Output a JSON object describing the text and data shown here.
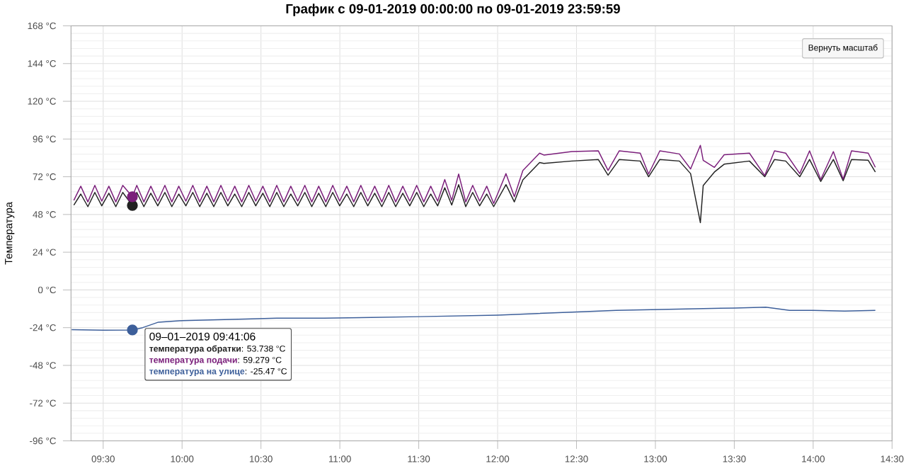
{
  "chart_data": {
    "type": "line",
    "title": "График с 09-01-2019 00:00:00 по 09-01-2019 23:59:59",
    "ylabel": "Температура",
    "xlim": [
      9.296,
      14.5
    ],
    "xticks": [
      {
        "value": 9.5,
        "label": "09:30"
      },
      {
        "value": 10,
        "label": "10:00"
      },
      {
        "value": 10.5,
        "label": "10:30"
      },
      {
        "value": 11,
        "label": "11:00"
      },
      {
        "value": 11.5,
        "label": "11:30"
      },
      {
        "value": 12,
        "label": "12:00"
      },
      {
        "value": 12.5,
        "label": "12:30"
      },
      {
        "value": 13,
        "label": "13:00"
      },
      {
        "value": 13.5,
        "label": "13:30"
      },
      {
        "value": 14,
        "label": "14:00"
      },
      {
        "value": 14.5,
        "label": "14:30"
      }
    ],
    "ylim": [
      -96,
      168
    ],
    "yticks": [
      {
        "value": -96,
        "label": "-96 °C"
      },
      {
        "value": -72,
        "label": "-72 °C"
      },
      {
        "value": -48,
        "label": "-48 °C"
      },
      {
        "value": -24,
        "label": "-24 °C"
      },
      {
        "value": 0,
        "label": "0 °C"
      },
      {
        "value": 24,
        "label": "24 °C"
      },
      {
        "value": 48,
        "label": "48 °C"
      },
      {
        "value": 72,
        "label": "72 °C"
      },
      {
        "value": 96,
        "label": "96 °C"
      },
      {
        "value": 120,
        "label": "120 °C"
      },
      {
        "value": 144,
        "label": "144 °C"
      },
      {
        "value": 168,
        "label": "168 °C"
      }
    ],
    "grid": true,
    "series": [
      {
        "name": "температура обратки",
        "color": "#222222",
        "x": [
          9.314,
          9.358,
          9.403,
          9.447,
          9.491,
          9.536,
          9.58,
          9.624,
          9.685,
          9.713,
          9.758,
          9.802,
          9.846,
          9.891,
          9.935,
          9.979,
          10.024,
          10.068,
          10.112,
          10.157,
          10.201,
          10.246,
          10.29,
          10.334,
          10.378,
          10.423,
          10.467,
          10.512,
          10.556,
          10.6,
          10.645,
          10.689,
          10.733,
          10.778,
          10.822,
          10.866,
          10.911,
          10.955,
          10.999,
          11.044,
          11.088,
          11.133,
          11.177,
          11.221,
          11.266,
          11.31,
          11.354,
          11.399,
          11.443,
          11.487,
          11.532,
          11.576,
          11.62,
          11.665,
          11.709,
          11.753,
          11.798,
          11.842,
          11.886,
          11.931,
          11.975,
          12.053,
          12.106,
          12.16,
          12.266,
          12.293,
          12.47,
          12.638,
          12.7,
          12.771,
          12.904,
          12.957,
          13.028,
          13.152,
          13.223,
          13.285,
          13.303,
          13.374,
          13.436,
          13.596,
          13.693,
          13.755,
          13.826,
          13.915,
          13.977,
          14.048,
          14.128,
          14.19,
          14.243,
          14.349,
          14.394
        ],
        "values": [
          54,
          61,
          53,
          62,
          53.5,
          61.5,
          53,
          62,
          53.738,
          62,
          53,
          61.5,
          53.5,
          62,
          53,
          61,
          53.5,
          62,
          53,
          61.5,
          53,
          62,
          53.5,
          61,
          53,
          62,
          53.5,
          61.5,
          53,
          62,
          53,
          61,
          53.5,
          62,
          53,
          61.5,
          53,
          62,
          53.5,
          61,
          53,
          62,
          53.5,
          61.5,
          53,
          62,
          53,
          61.5,
          53.5,
          62,
          53,
          61,
          53.5,
          65,
          54,
          67,
          53,
          62,
          53.5,
          61,
          53,
          67,
          56,
          70,
          81,
          80.5,
          82,
          83,
          73,
          83,
          82,
          72,
          83,
          82,
          74,
          42.8,
          66.4,
          75,
          80,
          82,
          72,
          83,
          82,
          72,
          83,
          69,
          83,
          69.5,
          83,
          82.5,
          75
        ]
      },
      {
        "name": "температура подачи",
        "color": "#7b1f7b",
        "x": [
          9.314,
          9.358,
          9.403,
          9.447,
          9.491,
          9.536,
          9.58,
          9.624,
          9.685,
          9.713,
          9.758,
          9.802,
          9.846,
          9.891,
          9.935,
          9.979,
          10.024,
          10.068,
          10.112,
          10.157,
          10.201,
          10.246,
          10.29,
          10.334,
          10.378,
          10.423,
          10.467,
          10.512,
          10.556,
          10.6,
          10.645,
          10.689,
          10.733,
          10.778,
          10.822,
          10.866,
          10.911,
          10.955,
          10.999,
          11.044,
          11.088,
          11.133,
          11.177,
          11.221,
          11.266,
          11.31,
          11.354,
          11.399,
          11.443,
          11.487,
          11.532,
          11.576,
          11.62,
          11.665,
          11.709,
          11.753,
          11.798,
          11.842,
          11.886,
          11.931,
          11.975,
          12.053,
          12.106,
          12.16,
          12.266,
          12.293,
          12.47,
          12.638,
          12.7,
          12.771,
          12.904,
          12.957,
          13.028,
          13.152,
          13.223,
          13.285,
          13.303,
          13.374,
          13.436,
          13.596,
          13.693,
          13.755,
          13.826,
          13.915,
          13.977,
          14.048,
          14.128,
          14.19,
          14.243,
          14.349,
          14.394
        ],
        "values": [
          57,
          66,
          56,
          66.5,
          56.5,
          66,
          56,
          66.5,
          59.279,
          66.5,
          56,
          66,
          56.5,
          66.5,
          56,
          66,
          56.5,
          66.5,
          56,
          66,
          56,
          66.5,
          56.5,
          66,
          56,
          66.5,
          56.5,
          66,
          56,
          66.5,
          56,
          66,
          56.5,
          66.5,
          56,
          66,
          56,
          66.5,
          56.5,
          66,
          56,
          66.5,
          56.5,
          66,
          56,
          66.5,
          56,
          66,
          56.5,
          66.5,
          56,
          66,
          56.5,
          70.2,
          57,
          73.7,
          56,
          66.5,
          56.5,
          66,
          55,
          74,
          59.3,
          76,
          87,
          85.8,
          88,
          88.5,
          76,
          88.5,
          87,
          73.7,
          88.5,
          86.5,
          77,
          92,
          82.5,
          78,
          86,
          87,
          72.8,
          88.5,
          87,
          74,
          88.5,
          70.2,
          88,
          70.5,
          88.5,
          87,
          78
        ]
      },
      {
        "name": "температура на улице",
        "color": "#3d5f9a",
        "x": [
          9.3,
          9.5,
          9.685,
          9.75,
          9.85,
          10.0,
          10.2,
          10.4,
          10.6,
          10.9,
          11.2,
          11.5,
          11.75,
          12.0,
          12.25,
          12.5,
          12.75,
          13.0,
          13.25,
          13.5,
          13.7,
          13.85,
          14.0,
          14.2,
          14.394
        ],
        "values": [
          -25.3,
          -25.6,
          -25.47,
          -24,
          -20.5,
          -19.5,
          -19,
          -18.5,
          -18,
          -18,
          -17.5,
          -17,
          -16.5,
          -16,
          -15,
          -14,
          -13,
          -12.5,
          -12,
          -11.5,
          -11,
          -13,
          -13,
          -13.5,
          -13
        ]
      },
      {
        "type": "scatter",
        "color": "#222222",
        "x": [
          9.685
        ],
        "values": [
          53.738
        ]
      },
      {
        "type": "scatter",
        "color": "#7b1f7b",
        "x": [
          9.685
        ],
        "values": [
          59.279
        ]
      },
      {
        "type": "scatter",
        "color": "#3d5f9a",
        "x": [
          9.685
        ],
        "values": [
          -25.47
        ]
      }
    ],
    "annotations": [
      "09–01–2019 09:41:06",
      "Вернуть масштаб",
      ": 53.738 °C",
      ": 59.279 °C",
      ": -25.47 °C"
    ]
  }
}
